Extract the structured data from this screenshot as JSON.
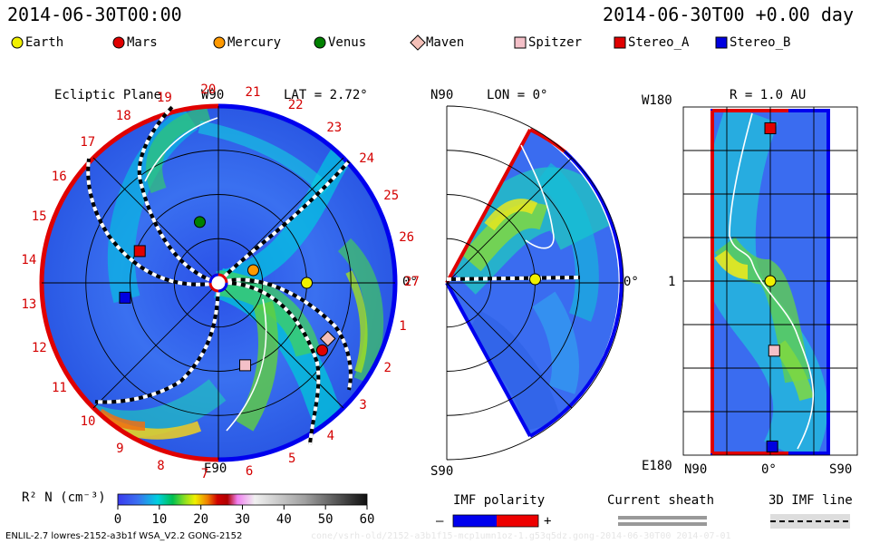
{
  "header": {
    "left_time": "2014-06-30T00:00",
    "right_time": "2014-06-30T00 +0.00 day"
  },
  "legend": [
    {
      "label": "Earth",
      "shape": "circle",
      "color": "#f0f000"
    },
    {
      "label": "Mars",
      "shape": "circle",
      "color": "#e00000"
    },
    {
      "label": "Mercury",
      "shape": "circle",
      "color": "#ff9900"
    },
    {
      "label": "Venus",
      "shape": "circle",
      "color": "#008000"
    },
    {
      "label": "Maven",
      "shape": "diamond",
      "color": "#f4c0b8"
    },
    {
      "label": "Spitzer",
      "shape": "square",
      "color": "#f4c0c8"
    },
    {
      "label": "Stereo_A",
      "shape": "square",
      "color": "#e00000"
    },
    {
      "label": "Stereo_B",
      "shape": "square",
      "color": "#0000e0"
    }
  ],
  "chart_data": [
    {
      "type": "heatmap",
      "title": "Ecliptic Plane",
      "top_label": "W90",
      "bottom_label": "E90",
      "lat_label": "LAT = 2.72°",
      "right_label": "0°",
      "sector_labels": [
        "1",
        "2",
        "3",
        "4",
        "5",
        "6",
        "7",
        "8",
        "9",
        "10",
        "11",
        "12",
        "13",
        "14",
        "15",
        "16",
        "17",
        "18",
        "19",
        "20",
        "21",
        "22",
        "23",
        "24",
        "25",
        "26",
        "27"
      ],
      "markers": [
        {
          "name": "Earth",
          "r_au": 1.0,
          "lon_deg": 0
        },
        {
          "name": "Venus",
          "r_au": 0.72,
          "lon_deg": 107
        },
        {
          "name": "Mercury",
          "r_au": 0.42,
          "lon_deg": 20
        },
        {
          "name": "Mars",
          "r_au": 1.4,
          "lon_deg": -33
        },
        {
          "name": "Maven",
          "r_au": 1.39,
          "lon_deg": -27
        },
        {
          "name": "Spitzer",
          "r_au": 0.98,
          "lon_deg": -72
        },
        {
          "name": "Stereo_A",
          "r_au": 0.96,
          "lon_deg": 158
        },
        {
          "name": "Stereo_B",
          "r_au": 1.07,
          "lon_deg": -171
        }
      ]
    },
    {
      "type": "heatmap",
      "title": "LON = 0°",
      "top_label": "N90",
      "bottom_label": "S90",
      "right_label": "0°",
      "markers": [
        {
          "name": "Earth",
          "r_au": 1.0,
          "lat_deg": 0
        }
      ]
    },
    {
      "type": "heatmap",
      "title": "R = 1.0 AU",
      "top_label": "W180",
      "bottom_label": "E180",
      "left_label": "1",
      "x_labels": [
        "N90",
        "0°",
        "S90"
      ],
      "markers": [
        {
          "name": "Stereo_A",
          "lon_deg": 158,
          "lat_deg": 0
        },
        {
          "name": "Earth",
          "lon_deg": 0,
          "lat_deg": 0
        },
        {
          "name": "Spitzer",
          "lon_deg": -72,
          "lat_deg": -4
        },
        {
          "name": "Stereo_B",
          "lon_deg": -171,
          "lat_deg": -2
        }
      ]
    }
  ],
  "colorbar": {
    "label": "R² N (cm⁻³)",
    "ticks": [
      "0",
      "10",
      "20",
      "30",
      "40",
      "50",
      "60"
    ],
    "range": [
      0,
      60
    ]
  },
  "imf": {
    "title": "IMF polarity",
    "minus": "–",
    "plus": "+"
  },
  "sheath": {
    "title": "Current sheath"
  },
  "imf3d": {
    "title": "3D IMF line"
  },
  "footer": {
    "left": "ENLIL-2.7 lowres-2152-a3b1f WSA_V2.2 GONG-2152",
    "right": "cone/vsrh-old/2152-a3b1f15-mcp1umn1oz-1.g53q5dz.gong-2014-06-30T00   2014-07-01"
  }
}
